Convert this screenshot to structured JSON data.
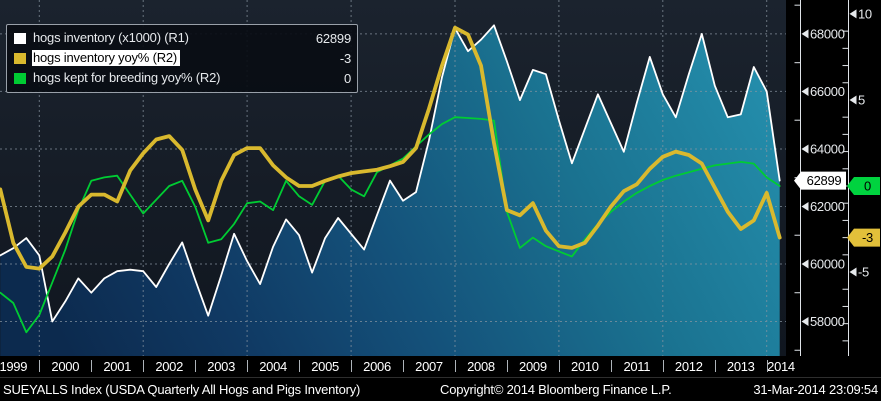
{
  "legend": {
    "series": [
      {
        "swatch_color": "#ffffff",
        "label": "hogs inventory (x1000) (R1)",
        "value": "62899",
        "highlighted": false
      },
      {
        "swatch_color": "#d9b92e",
        "label": "hogs inventory yoy% (R2)",
        "value": "-3",
        "highlighted": true
      },
      {
        "swatch_color": "#00cc33",
        "label": "hogs kept for breeding yoy% (R2)",
        "value": "0",
        "highlighted": false
      }
    ]
  },
  "footer": {
    "security": "SUEYALLS Index (USDA Quarterly All Hogs and Pigs Inventory)",
    "copyright": "Copyright© 2014 Bloomberg Finance L.P.",
    "datetime": "31-Mar-2014 23:09:54"
  },
  "axes": {
    "x_years": [
      1999,
      2000,
      2001,
      2002,
      2003,
      2004,
      2005,
      2006,
      2007,
      2008,
      2009,
      2010,
      2011,
      2012,
      2013,
      2014
    ],
    "x_grid_years": [
      2000,
      2002,
      2004,
      2006,
      2008,
      2010,
      2012,
      2014
    ],
    "right1": {
      "name": "R1",
      "major_ticks": [
        68000,
        66000,
        64000,
        62000,
        60000,
        58000
      ],
      "minor_ticks": [
        69000,
        67000,
        65000,
        63000,
        61000,
        59000,
        57000
      ]
    },
    "right2": {
      "name": "R2",
      "major_ticks": [
        10,
        5,
        -5
      ],
      "minor_ticks": [
        9,
        8,
        7,
        6,
        4,
        3,
        2,
        1,
        0,
        -1,
        -2,
        -3,
        -4,
        -6,
        -7,
        -8,
        -9
      ]
    }
  },
  "tags": [
    {
      "axis": "R1",
      "value": 62899,
      "text": "62899",
      "bg": "#ffffff",
      "fg": "#000000"
    },
    {
      "axis": "R2",
      "value": -3,
      "text": "-3",
      "bg": "#e2c03a",
      "fg": "#000000"
    },
    {
      "axis": "R2",
      "value": 0,
      "text": "0",
      "bg": "#00d33f",
      "fg": "#000000"
    }
  ],
  "chart_data": {
    "type": "line",
    "title": "",
    "x_axis": {
      "start": 1999.25,
      "step": 0.25,
      "count": 61,
      "tick_labels": [
        1999,
        2000,
        2001,
        2002,
        2003,
        2004,
        2005,
        2006,
        2007,
        2008,
        2009,
        2010,
        2011,
        2012,
        2013,
        2014
      ]
    },
    "right_axis_1": {
      "range": [
        56800,
        69180
      ],
      "ticks": [
        58000,
        60000,
        62000,
        64000,
        66000,
        68000
      ]
    },
    "right_axis_2": {
      "range": [
        -9.88,
        10.81
      ],
      "ticks": [
        -5,
        0,
        5,
        10
      ]
    },
    "grid": "dashed, horizontal on R1 ticks, vertical on even years",
    "legend_position": "top-left",
    "series": [
      {
        "name": "hogs inventory (x1000)",
        "axis": "R1",
        "color": "#ffffff",
        "width": 1.8,
        "area_fill": true,
        "last_value": 62899,
        "values": [
          60300,
          60550,
          60900,
          60300,
          58000,
          58700,
          59500,
          59000,
          59500,
          59750,
          59800,
          59750,
          59200,
          60000,
          60750,
          59450,
          58200,
          59600,
          61050,
          60100,
          59300,
          60600,
          61550,
          61000,
          59700,
          60900,
          61600,
          61050,
          60500,
          61700,
          62900,
          62200,
          62500,
          64300,
          66500,
          68200,
          67400,
          67800,
          68300,
          67050,
          65700,
          66750,
          66600,
          65000,
          63500,
          64700,
          65900,
          64900,
          63900,
          65600,
          67200,
          65900,
          65100,
          66600,
          68000,
          66200,
          65100,
          65200,
          66850,
          66000,
          62899
        ]
      },
      {
        "name": "hogs inventory yoy%",
        "axis": "R2",
        "color": "#d9b92e",
        "width": 3.8,
        "area_fill": false,
        "last_value": -3,
        "values": [
          -0.2,
          -3.3,
          -4.7,
          -4.8,
          -4.1,
          -2.7,
          -1.2,
          -0.5,
          -0.5,
          -0.9,
          0.9,
          1.9,
          2.7,
          2.9,
          2.1,
          -0.2,
          -2.0,
          0.3,
          1.8,
          2.2,
          2.2,
          1.2,
          0.5,
          0.0,
          0.0,
          0.3,
          0.55,
          0.75,
          0.85,
          0.95,
          1.15,
          1.4,
          2.2,
          4.5,
          7.0,
          9.2,
          8.8,
          7.0,
          2.5,
          -1.4,
          -1.7,
          -1.0,
          -2.6,
          -3.5,
          -3.6,
          -3.3,
          -2.3,
          -1.2,
          -0.3,
          0.1,
          1.0,
          1.7,
          2.0,
          1.8,
          1.3,
          -0.1,
          -1.5,
          -2.5,
          -2.0,
          -0.4,
          -3.0
        ]
      },
      {
        "name": "hogs kept for breeding yoy%",
        "axis": "R2",
        "color": "#00cc33",
        "width": 1.8,
        "area_fill": false,
        "last_value": 0,
        "values": [
          -6.2,
          -6.8,
          -8.5,
          -7.5,
          -5.6,
          -3.7,
          -1.4,
          0.3,
          0.5,
          0.6,
          -0.5,
          -1.6,
          -0.8,
          0.0,
          0.3,
          -1.2,
          -3.3,
          -3.1,
          -2.2,
          -1.0,
          -0.9,
          -1.4,
          0.3,
          -0.6,
          -1.1,
          0.3,
          0.6,
          -0.2,
          -0.6,
          0.8,
          1.2,
          1.6,
          2.3,
          3.0,
          3.6,
          4.0,
          3.95,
          3.9,
          3.8,
          -1.5,
          -3.6,
          -3.0,
          -3.5,
          -3.8,
          -4.1,
          -3.1,
          -2.2,
          -1.5,
          -0.9,
          -0.4,
          0.0,
          0.35,
          0.6,
          0.8,
          1.0,
          1.2,
          1.3,
          1.4,
          1.3,
          0.5,
          0.0
        ]
      }
    ],
    "colors": {
      "area_fill_top": "#2796b4",
      "area_fill_bottom": "#0c2a4e",
      "grid": "#8b97a3",
      "background_top": "#1b232e",
      "background_bottom": "#10161f"
    }
  }
}
